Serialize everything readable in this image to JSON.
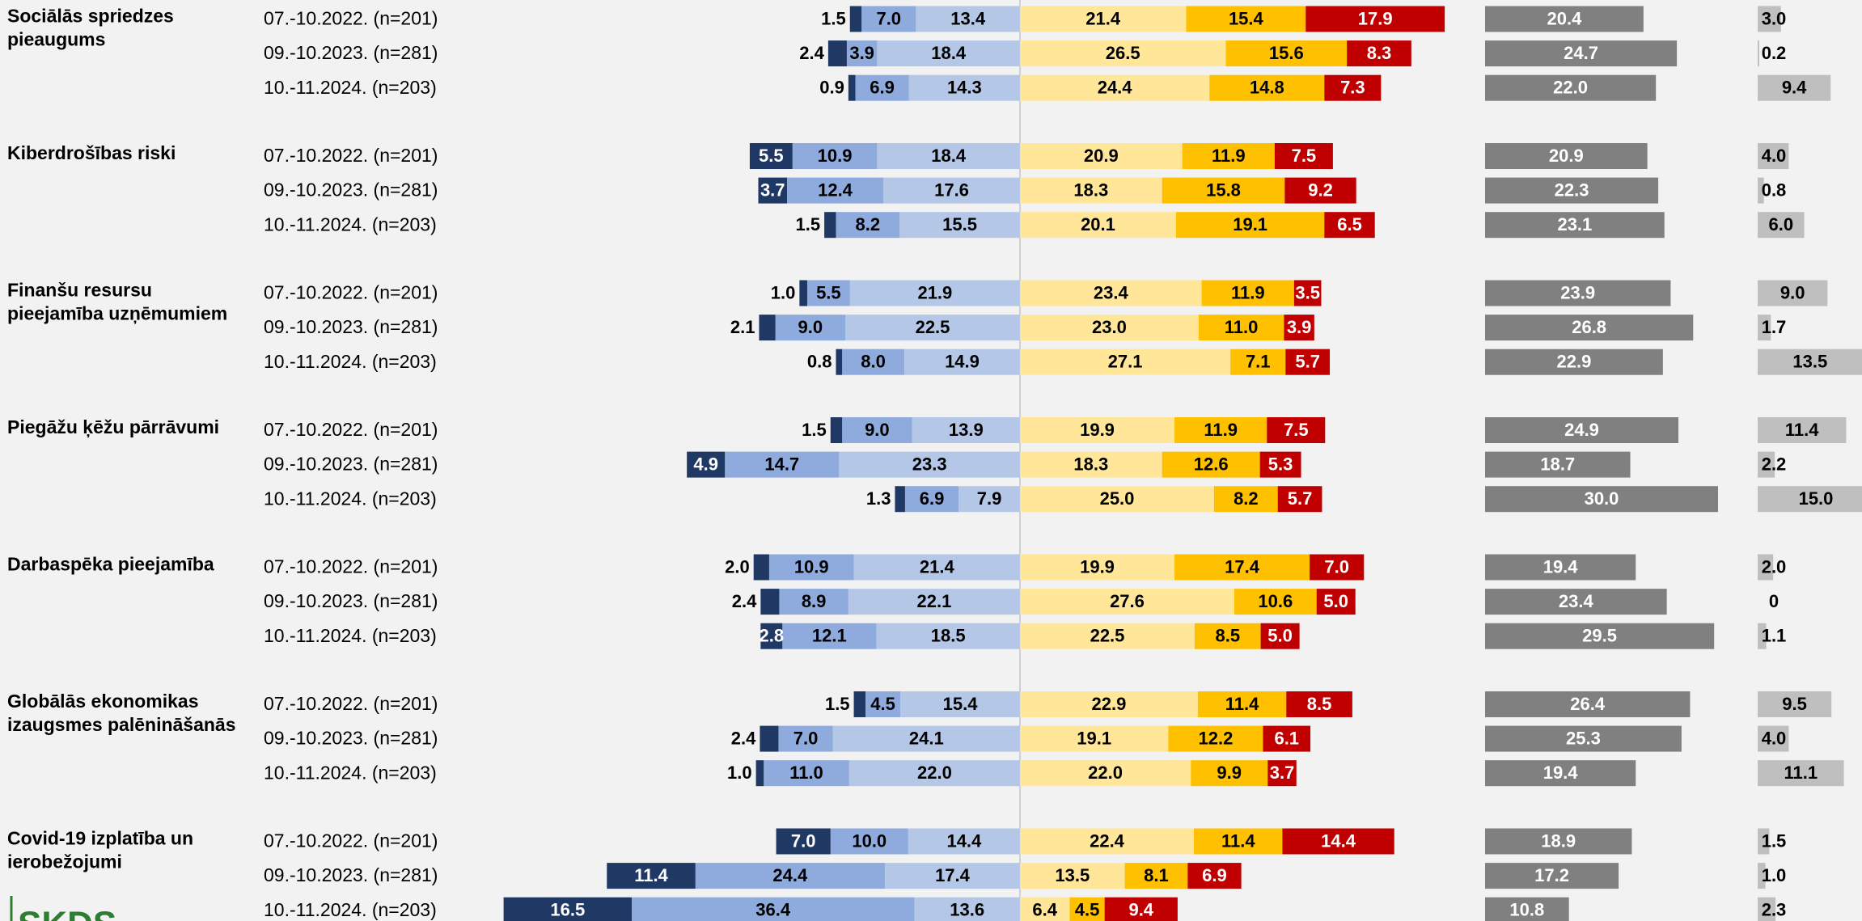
{
  "chart_data": {
    "type": "diverging_bar",
    "colors": [
      "#203864",
      "#8faadc",
      "#b4c7e7",
      "#ffe699",
      "#ffc000",
      "#c00000",
      "#808080",
      "#bfbfbf"
    ],
    "logo": "SKDS",
    "groups": [
      {
        "label": "Sociālās spriedzes pieaugums",
        "rows": [
          {
            "category": "07.-10.2022. (n=201)",
            "values": [
              1.5,
              7.0,
              13.4,
              21.4,
              15.4,
              17.9,
              20.4,
              3.0
            ],
            "value_labels": [
              "1.5",
              "7.0",
              "13.4",
              "21.4",
              "15.4",
              "17.9",
              "20.4",
              "3.0"
            ]
          },
          {
            "category": "09.-10.2023. (n=281)",
            "values": [
              2.4,
              3.9,
              18.4,
              26.5,
              15.6,
              8.3,
              24.7,
              0.2
            ],
            "value_labels": [
              "2.4",
              "3.9",
              "18.4",
              "26.5",
              "15.6",
              "8.3",
              "24.7",
              "0.2"
            ]
          },
          {
            "category": "10.-11.2024. (n=203)",
            "values": [
              0.9,
              6.9,
              14.3,
              24.4,
              14.8,
              7.3,
              22.0,
              9.4
            ],
            "value_labels": [
              "0.9",
              "6.9",
              "14.3",
              "24.4",
              "14.8",
              "7.3",
              "22.0",
              "9.4"
            ]
          }
        ]
      },
      {
        "label": "Kiberdrošības riski",
        "rows": [
          {
            "category": "07.-10.2022. (n=201)",
            "values": [
              5.5,
              10.9,
              18.4,
              20.9,
              11.9,
              7.5,
              20.9,
              4.0
            ],
            "value_labels": [
              "5.5",
              "10.9",
              "18.4",
              "20.9",
              "11.9",
              "7.5",
              "20.9",
              "4.0"
            ]
          },
          {
            "category": "09.-10.2023. (n=281)",
            "values": [
              3.7,
              12.4,
              17.6,
              18.3,
              15.8,
              9.2,
              22.3,
              0.8
            ],
            "value_labels": [
              "3.7",
              "12.4",
              "17.6",
              "18.3",
              "15.8",
              "9.2",
              "22.3",
              "0.8"
            ]
          },
          {
            "category": "10.-11.2024. (n=203)",
            "values": [
              1.5,
              8.2,
              15.5,
              20.1,
              19.1,
              6.5,
              23.1,
              6.0
            ],
            "value_labels": [
              "1.5",
              "8.2",
              "15.5",
              "20.1",
              "19.1",
              "6.5",
              "23.1",
              "6.0"
            ]
          }
        ]
      },
      {
        "label": "Finanšu resursu pieejamība uzņēmumiem",
        "rows": [
          {
            "category": "07.-10.2022. (n=201)",
            "values": [
              1.0,
              5.5,
              21.9,
              23.4,
              11.9,
              3.5,
              23.9,
              9.0
            ],
            "value_labels": [
              "1.0",
              "5.5",
              "21.9",
              "23.4",
              "11.9",
              "3.5",
              "23.9",
              "9.0"
            ]
          },
          {
            "category": "09.-10.2023. (n=281)",
            "values": [
              2.1,
              9.0,
              22.5,
              23.0,
              11.0,
              3.9,
              26.8,
              1.7
            ],
            "value_labels": [
              "2.1",
              "9.0",
              "22.5",
              "23.0",
              "11.0",
              "3.9",
              "26.8",
              "1.7"
            ]
          },
          {
            "category": "10.-11.2024. (n=203)",
            "values": [
              0.8,
              8.0,
              14.9,
              27.1,
              7.1,
              5.7,
              22.9,
              13.5
            ],
            "value_labels": [
              "0.8",
              "8.0",
              "14.9",
              "27.1",
              "7.1",
              "5.7",
              "22.9",
              "13.5"
            ]
          }
        ]
      },
      {
        "label": "Piegāžu ķēžu pārrāvumi",
        "rows": [
          {
            "category": "07.-10.2022. (n=201)",
            "values": [
              1.5,
              9.0,
              13.9,
              19.9,
              11.9,
              7.5,
              24.9,
              11.4
            ],
            "value_labels": [
              "1.5",
              "9.0",
              "13.9",
              "19.9",
              "11.9",
              "7.5",
              "24.9",
              "11.4"
            ]
          },
          {
            "category": "09.-10.2023. (n=281)",
            "values": [
              4.9,
              14.7,
              23.3,
              18.3,
              12.6,
              5.3,
              18.7,
              2.2
            ],
            "value_labels": [
              "4.9",
              "14.7",
              "23.3",
              "18.3",
              "12.6",
              "5.3",
              "18.7",
              "2.2"
            ]
          },
          {
            "category": "10.-11.2024. (n=203)",
            "values": [
              1.3,
              6.9,
              7.9,
              25.0,
              8.2,
              5.7,
              30.0,
              15.0
            ],
            "value_labels": [
              "1.3",
              "6.9",
              "7.9",
              "25.0",
              "8.2",
              "5.7",
              "30.0",
              "15.0"
            ]
          }
        ]
      },
      {
        "label": "Darbaspēka pieejamība",
        "rows": [
          {
            "category": "07.-10.2022. (n=201)",
            "values": [
              2.0,
              10.9,
              21.4,
              19.9,
              17.4,
              7.0,
              19.4,
              2.0
            ],
            "value_labels": [
              "2.0",
              "10.9",
              "21.4",
              "19.9",
              "17.4",
              "7.0",
              "19.4",
              "2.0"
            ]
          },
          {
            "category": "09.-10.2023. (n=281)",
            "values": [
              2.4,
              8.9,
              22.1,
              27.6,
              10.6,
              5.0,
              23.4,
              0
            ],
            "value_labels": [
              "2.4",
              "8.9",
              "22.1",
              "27.6",
              "10.6",
              "5.0",
              "23.4",
              "0"
            ]
          },
          {
            "category": "10.-11.2024. (n=203)",
            "values": [
              2.8,
              12.1,
              18.5,
              22.5,
              8.5,
              5.0,
              29.5,
              1.1
            ],
            "value_labels": [
              "2.8",
              "12.1",
              "18.5",
              "22.5",
              "8.5",
              "5.0",
              "29.5",
              "1.1"
            ]
          }
        ]
      },
      {
        "label": "Globālās ekonomikas izaugsmes palēnināšanās",
        "rows": [
          {
            "category": "07.-10.2022. (n=201)",
            "values": [
              1.5,
              4.5,
              15.4,
              22.9,
              11.4,
              8.5,
              26.4,
              9.5
            ],
            "value_labels": [
              "1.5",
              "4.5",
              "15.4",
              "22.9",
              "11.4",
              "8.5",
              "26.4",
              "9.5"
            ]
          },
          {
            "category": "09.-10.2023. (n=281)",
            "values": [
              2.4,
              7.0,
              24.1,
              19.1,
              12.2,
              6.1,
              25.3,
              4.0
            ],
            "value_labels": [
              "2.4",
              "7.0",
              "24.1",
              "19.1",
              "12.2",
              "6.1",
              "25.3",
              "4.0"
            ]
          },
          {
            "category": "10.-11.2024. (n=203)",
            "values": [
              1.0,
              11.0,
              22.0,
              22.0,
              9.9,
              3.7,
              19.4,
              11.1
            ],
            "value_labels": [
              "1.0",
              "11.0",
              "22.0",
              "22.0",
              "9.9",
              "3.7",
              "19.4",
              "11.1"
            ]
          }
        ]
      },
      {
        "label": "Covid-19 izplatība un ierobežojumi",
        "rows": [
          {
            "category": "07.-10.2022. (n=201)",
            "values": [
              7.0,
              10.0,
              14.4,
              22.4,
              11.4,
              14.4,
              18.9,
              1.5
            ],
            "value_labels": [
              "7.0",
              "10.0",
              "14.4",
              "22.4",
              "11.4",
              "14.4",
              "18.9",
              "1.5"
            ]
          },
          {
            "category": "09.-10.2023. (n=281)",
            "values": [
              11.4,
              24.4,
              17.4,
              13.5,
              8.1,
              6.9,
              17.2,
              1.0
            ],
            "value_labels": [
              "11.4",
              "24.4",
              "17.4",
              "13.5",
              "8.1",
              "6.9",
              "17.2",
              "1.0"
            ]
          },
          {
            "category": "10.-11.2024. (n=203)",
            "values": [
              16.5,
              36.4,
              13.6,
              6.4,
              4.5,
              9.4,
              10.8,
              2.3
            ],
            "value_labels": [
              "16.5",
              "36.4",
              "13.6",
              "6.4",
              "4.5",
              "9.4",
              "10.8",
              "2.3"
            ]
          }
        ]
      }
    ]
  }
}
